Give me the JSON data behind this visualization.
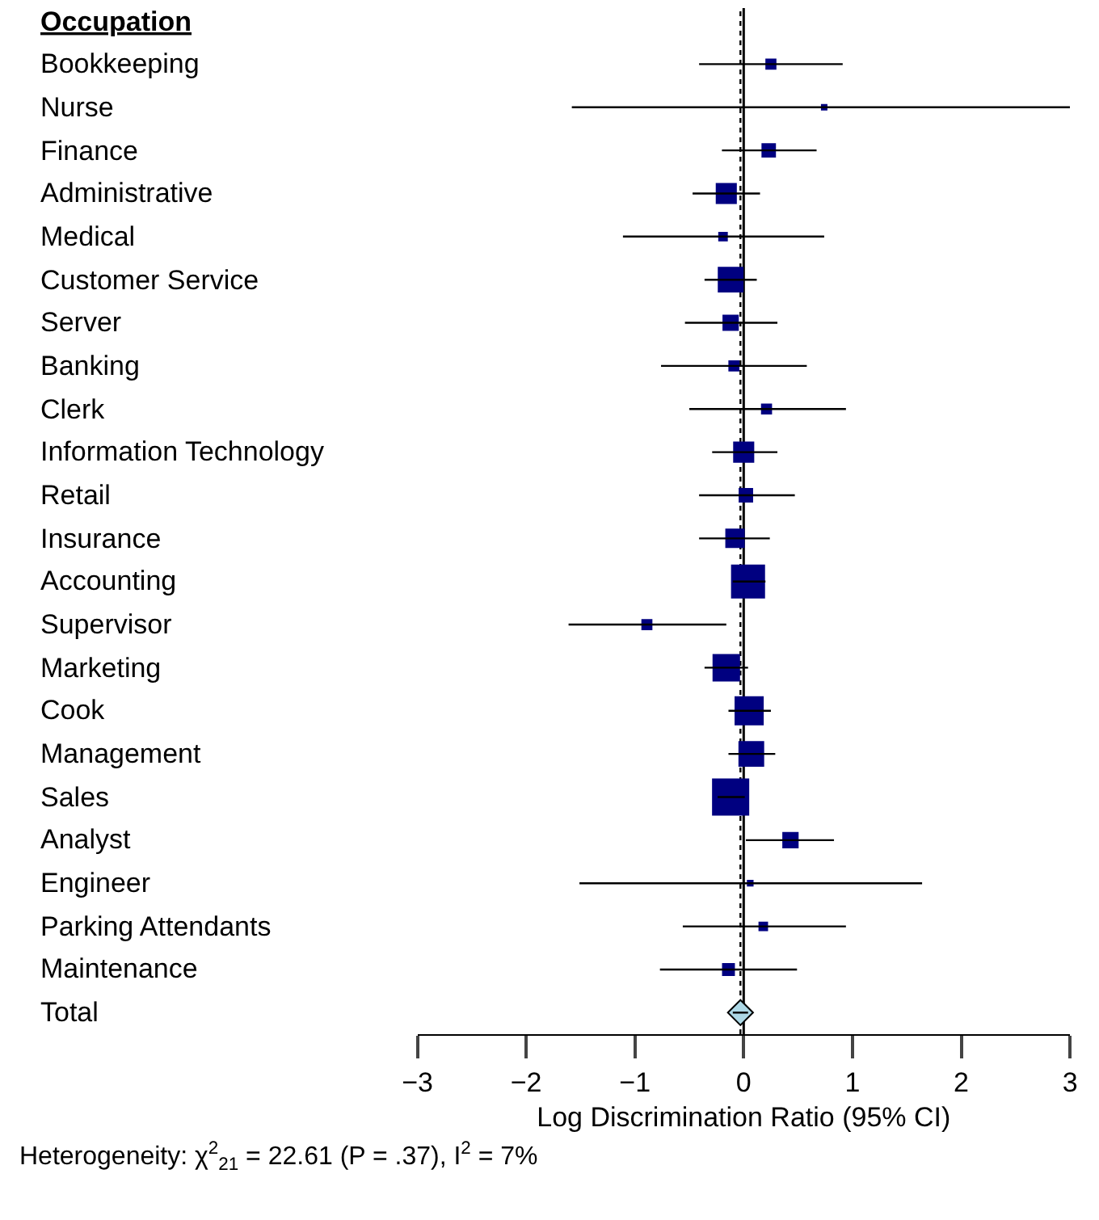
{
  "chart_data": {
    "type": "bubble",
    "orientation": "horizontal",
    "ylabel": "Occupation",
    "xlabel": "Log Discrimination Ratio (95% CI)",
    "categories": [
      "Bookkeeping",
      "Nurse",
      "Finance",
      "Administrative",
      "Medical",
      "Customer Service",
      "Server",
      "Banking",
      "Clerk",
      "Information Technology",
      "Retail",
      "Insurance",
      "Accounting",
      "Supervisor",
      "Marketing",
      "Cook",
      "Management",
      "Sales",
      "Analyst",
      "Engineer",
      "Parking Attendants",
      "Maintenance",
      "Total"
    ],
    "series": [
      {
        "color": "#000080",
        "marker": "square",
        "values": [
          0.25,
          0.74,
          0.23,
          -0.16,
          -0.19,
          -0.12,
          -0.12,
          -0.09,
          0.21,
          0.0,
          0.02,
          -0.08,
          0.04,
          -0.89,
          -0.16,
          0.05,
          0.07,
          -0.12,
          0.43,
          0.06,
          0.18,
          -0.14,
          null
        ],
        "sizes": [
          0.07,
          0.01,
          0.13,
          0.3,
          0.05,
          0.46,
          0.17,
          0.07,
          0.07,
          0.3,
          0.13,
          0.25,
          0.83,
          0.07,
          0.53,
          0.6,
          0.46,
          1,
          0.17,
          0.02,
          0.05,
          0.1,
          null
        ],
        "errors": [
          [
            -0.41,
            0.91
          ],
          [
            -1.58,
            3.0
          ],
          [
            -0.2,
            0.67
          ],
          [
            -0.47,
            0.15
          ],
          [
            -1.11,
            0.74
          ],
          [
            -0.36,
            0.12
          ],
          [
            -0.54,
            0.31
          ],
          [
            -0.76,
            0.58
          ],
          [
            -0.5,
            0.94
          ],
          [
            -0.29,
            0.31
          ],
          [
            -0.41,
            0.47
          ],
          [
            -0.41,
            0.24
          ],
          [
            -0.1,
            0.2
          ],
          [
            -1.61,
            -0.16
          ],
          [
            -0.36,
            0.04
          ],
          [
            -0.14,
            0.25
          ],
          [
            -0.14,
            0.29
          ],
          [
            -0.24,
            0.01
          ],
          [
            0.02,
            0.83
          ],
          [
            -1.51,
            1.64
          ],
          [
            -0.56,
            0.94
          ],
          [
            -0.77,
            0.49
          ],
          null
        ]
      },
      {
        "type": "scatter",
        "color": "#add8e6",
        "marker": "diamond",
        "values": [
          null,
          null,
          null,
          null,
          null,
          null,
          null,
          null,
          null,
          null,
          null,
          null,
          null,
          null,
          null,
          null,
          null,
          null,
          null,
          null,
          null,
          null,
          -0.03
        ],
        "errors": [
          null,
          null,
          null,
          null,
          null,
          null,
          null,
          null,
          null,
          null,
          null,
          null,
          null,
          null,
          null,
          null,
          null,
          null,
          null,
          null,
          null,
          null,
          [
            -0.1,
            0.04
          ]
        ]
      }
    ],
    "xlim": [
      -3,
      3
    ],
    "xticks": [
      {
        "value": -3,
        "label": "−3"
      },
      {
        "value": -2,
        "label": "−2"
      },
      {
        "value": -1,
        "label": "−1"
      },
      0,
      1,
      2,
      3
    ],
    "ref_lines": [
      {
        "axis": "x",
        "value": 0,
        "label": null,
        "line_style": "solid"
      },
      {
        "axis": "x",
        "value": -0.03,
        "label": null,
        "line_style": "dotted"
      }
    ],
    "annotations": [
      "Heterogeneity: χ$^{2}$$_{21}$ = 22.61 (P = .37), I$^{2}$ = 7%"
    ],
    "grid": false,
    "legend": false
  }
}
